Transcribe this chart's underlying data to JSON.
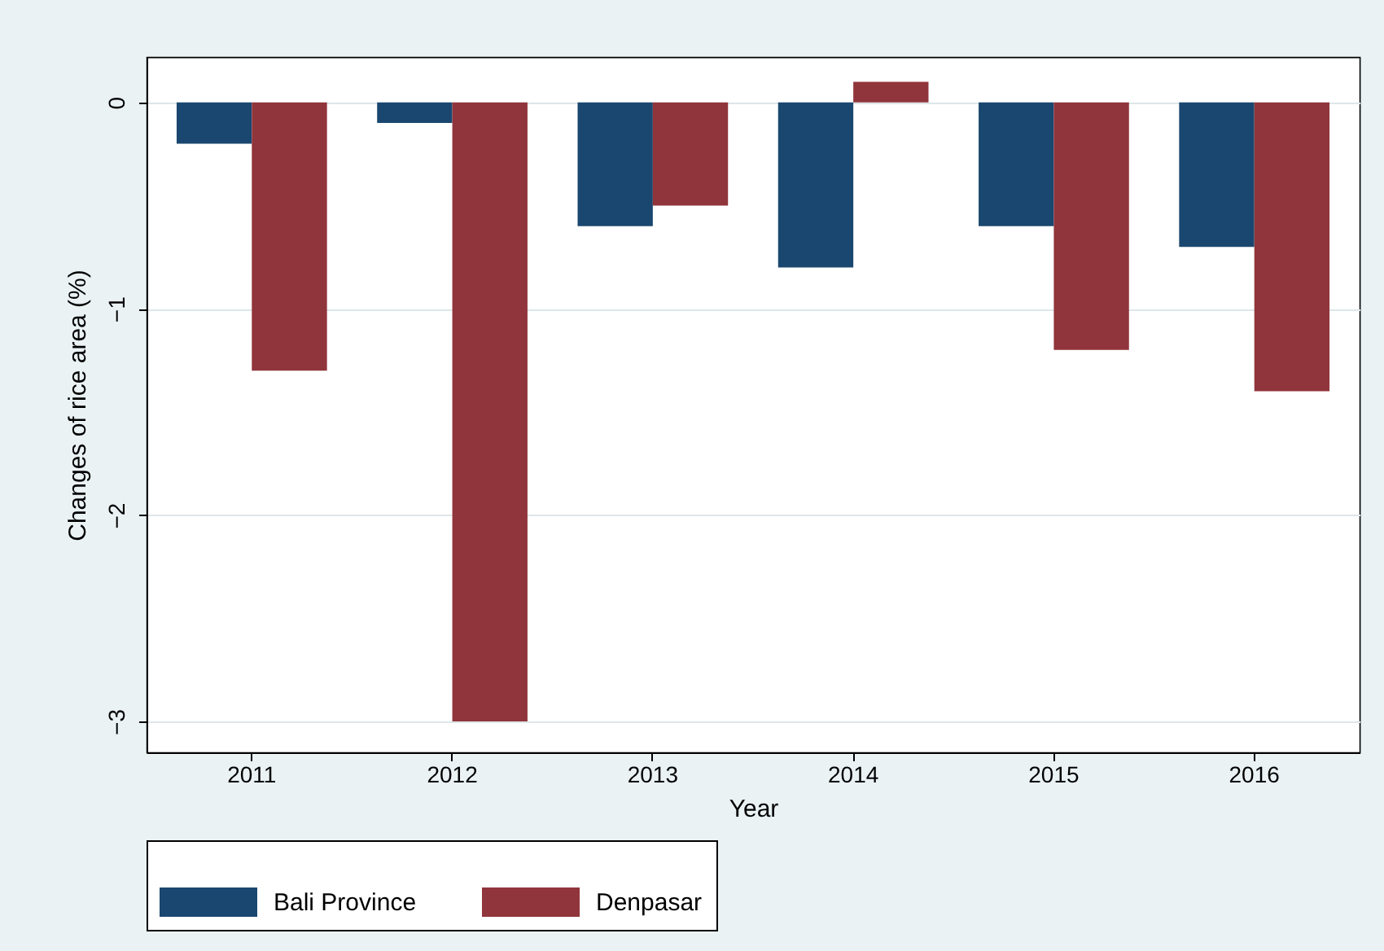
{
  "chart_data": {
    "type": "bar",
    "xlabel": "Year",
    "ylabel": "Changes of rice area (%)",
    "categories": [
      "2011",
      "2012",
      "2013",
      "2014",
      "2015",
      "2016"
    ],
    "series": [
      {
        "name": "Bali Province",
        "color": "#1a476f",
        "values": [
          -0.2,
          -0.1,
          -0.6,
          -0.8,
          -0.6,
          -0.7
        ]
      },
      {
        "name": "Denpasar",
        "color": "#90353b",
        "values": [
          -1.3,
          -3,
          -0.5,
          0.1,
          -1.2,
          -1.4
        ]
      }
    ],
    "ylim": [
      -3.15,
      0.22
    ],
    "yticks": [
      -3,
      -2,
      -1,
      0
    ],
    "grid": "y",
    "legend": "bottom"
  }
}
